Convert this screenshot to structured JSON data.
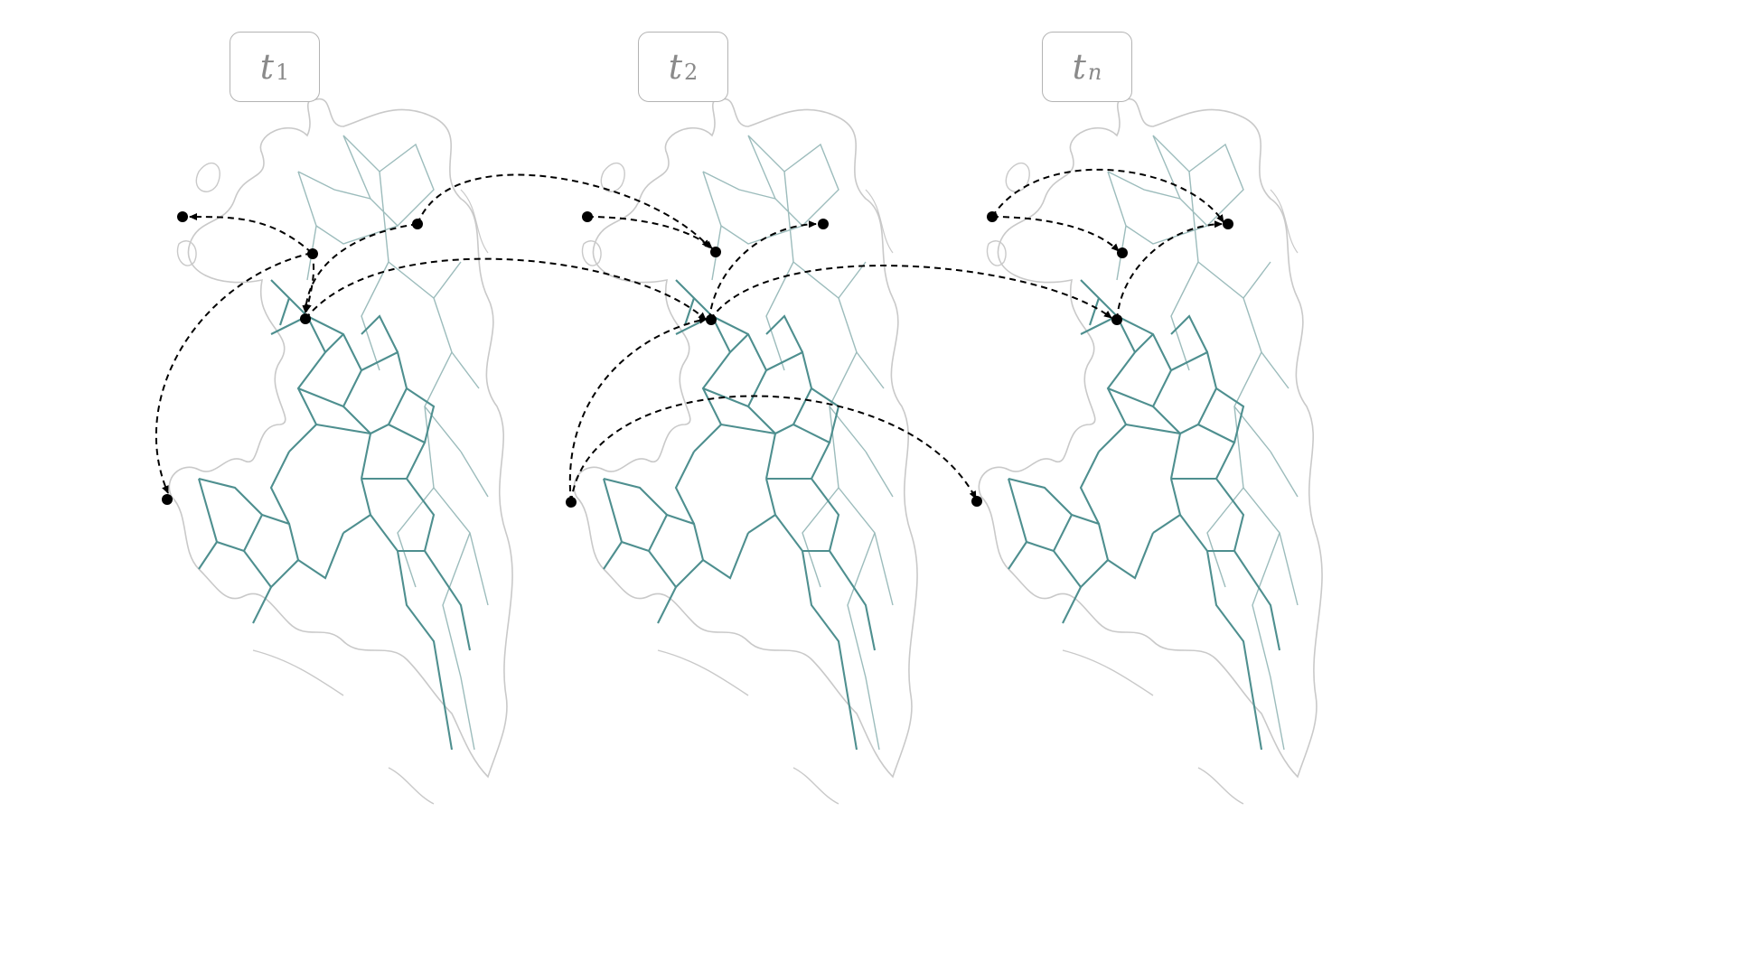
{
  "panels": [
    {
      "id": "t1",
      "label_main": "t",
      "label_sub": "1"
    },
    {
      "id": "t2",
      "label_main": "t",
      "label_sub": "2"
    },
    {
      "id": "tn",
      "label_main": "t",
      "label_sub": "n"
    }
  ],
  "colors": {
    "grid_strong": "#4e8f8f",
    "grid_light": "#9cbcbc",
    "coast": "#c9c9c9",
    "arrow": "#000000",
    "node": "#000000",
    "label_border": "#b3b3b3",
    "label_text": "#8a8a8a"
  }
}
